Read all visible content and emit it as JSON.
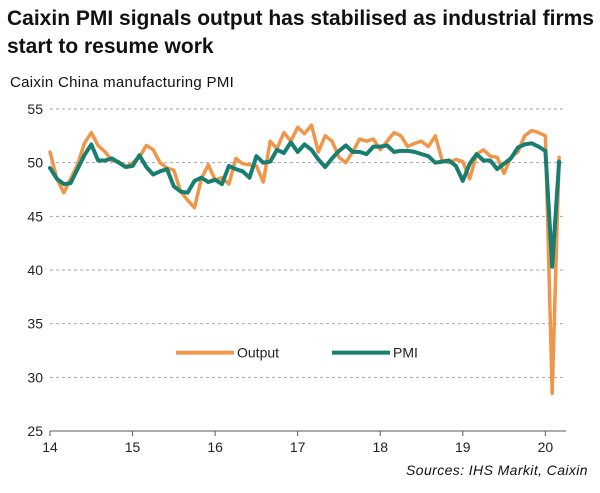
{
  "header": {
    "title": "Caixin PMI signals output has stabilised as industrial firms start to resume work"
  },
  "footer": {
    "source": "Sources: IHS Markit, Caixin"
  },
  "colors": {
    "output": "#f0964a",
    "pmi": "#187e6f",
    "grid": "#a6a6a6",
    "axis": "#595959"
  },
  "chart_data": {
    "type": "line",
    "title": "Caixin China manufacturing PMI",
    "ylabel": "",
    "xlabel": "",
    "ylim": [
      25,
      55
    ],
    "yticks": [
      "25",
      "30",
      "35",
      "40",
      "45",
      "50",
      "55"
    ],
    "xlim": [
      2014.0,
      2020.25
    ],
    "xticks": [
      "14",
      "15",
      "16",
      "17",
      "18",
      "19",
      "20"
    ],
    "grid": "horizontal dashed",
    "legend_position": "bottom-center",
    "x": [
      2014.0,
      2014.083,
      2014.167,
      2014.25,
      2014.333,
      2014.417,
      2014.5,
      2014.583,
      2014.667,
      2014.75,
      2014.833,
      2014.917,
      2015.0,
      2015.083,
      2015.167,
      2015.25,
      2015.333,
      2015.417,
      2015.5,
      2015.583,
      2015.667,
      2015.75,
      2015.833,
      2015.917,
      2016.0,
      2016.083,
      2016.167,
      2016.25,
      2016.333,
      2016.417,
      2016.5,
      2016.583,
      2016.667,
      2016.75,
      2016.833,
      2016.917,
      2017.0,
      2017.083,
      2017.167,
      2017.25,
      2017.333,
      2017.417,
      2017.5,
      2017.583,
      2017.667,
      2017.75,
      2017.833,
      2017.917,
      2018.0,
      2018.083,
      2018.167,
      2018.25,
      2018.333,
      2018.417,
      2018.5,
      2018.583,
      2018.667,
      2018.75,
      2018.833,
      2018.917,
      2019.0,
      2019.083,
      2019.167,
      2019.25,
      2019.333,
      2019.417,
      2019.5,
      2019.583,
      2019.667,
      2019.75,
      2019.833,
      2019.917,
      2020.0,
      2020.083,
      2020.167
    ],
    "series": [
      {
        "name": "Output",
        "color": "#f0964a",
        "values": [
          51.0,
          48.5,
          47.2,
          48.5,
          49.8,
          51.8,
          52.8,
          51.6,
          51.0,
          50.2,
          50.1,
          49.6,
          50.0,
          50.5,
          51.6,
          51.2,
          50.0,
          49.5,
          49.3,
          47.3,
          46.5,
          45.8,
          48.5,
          49.8,
          48.4,
          48.6,
          48.0,
          50.4,
          49.9,
          49.8,
          49.7,
          48.2,
          52.0,
          51.3,
          52.8,
          52.0,
          53.3,
          52.7,
          53.5,
          51.0,
          52.5,
          52.0,
          50.5,
          50.0,
          51.0,
          52.2,
          52.0,
          52.2,
          51.2,
          52.0,
          52.8,
          52.5,
          51.5,
          51.8,
          52.0,
          51.5,
          52.5,
          50.2,
          50.0,
          50.3,
          50.1,
          48.5,
          50.8,
          51.2,
          50.6,
          50.5,
          49.0,
          50.5,
          51.0,
          52.5,
          53.0,
          52.8,
          52.5,
          28.5,
          50.5
        ]
      },
      {
        "name": "PMI",
        "color": "#187e6f",
        "values": [
          49.5,
          48.5,
          48.0,
          48.1,
          49.4,
          50.7,
          51.7,
          50.2,
          50.2,
          50.4,
          50.0,
          49.6,
          49.7,
          50.7,
          49.6,
          48.9,
          49.2,
          49.4,
          47.8,
          47.3,
          47.2,
          48.3,
          48.6,
          48.2,
          48.4,
          48.0,
          49.7,
          49.4,
          49.2,
          48.6,
          50.6,
          50.0,
          50.1,
          51.2,
          50.9,
          51.9,
          51.0,
          51.7,
          51.2,
          50.3,
          49.6,
          50.4,
          51.1,
          51.6,
          51.0,
          51.0,
          50.8,
          51.5,
          51.5,
          51.6,
          51.0,
          51.1,
          51.1,
          51.0,
          50.8,
          50.6,
          50.0,
          50.1,
          50.2,
          49.7,
          48.3,
          49.9,
          50.8,
          50.2,
          50.2,
          49.4,
          49.9,
          50.4,
          51.4,
          51.7,
          51.8,
          51.5,
          51.1,
          40.3,
          50.1
        ]
      }
    ]
  }
}
